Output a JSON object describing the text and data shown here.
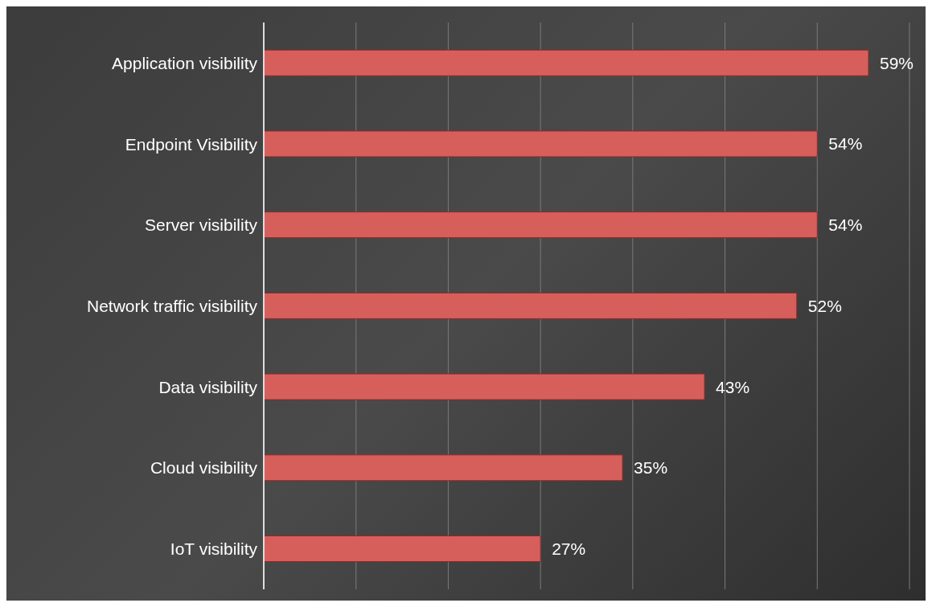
{
  "chart_data": {
    "type": "bar",
    "orientation": "horizontal",
    "categories": [
      "Application visibility",
      "Endpoint Visibility",
      "Server visibility",
      "Network traffic visibility",
      "Data visibility",
      "Cloud visibility",
      "IoT visibility"
    ],
    "values": [
      59,
      54,
      54,
      52,
      43,
      35,
      27
    ],
    "value_labels": [
      "59%",
      "54%",
      "54%",
      "52%",
      "43%",
      "35%",
      "27%"
    ],
    "color": "#d65f5c",
    "grid": "x",
    "tick_labels": "y"
  }
}
